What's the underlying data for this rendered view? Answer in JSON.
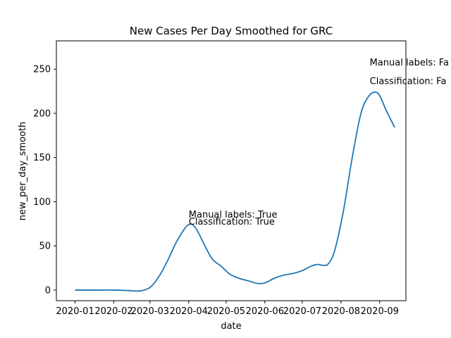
{
  "chart_data": {
    "type": "line",
    "title": "New Cases Per Day Smoothed for GRC",
    "xlabel": "date",
    "ylabel": "new_per_day_smooth",
    "x_ticks": [
      "2020-01",
      "2020-02",
      "2020-03",
      "2020-04",
      "2020-05",
      "2020-06",
      "2020-07",
      "2020-08",
      "2020-09"
    ],
    "y_ticks": [
      0,
      50,
      100,
      150,
      200,
      250
    ],
    "xlim": [
      "2019-12-17",
      "2020-09-22"
    ],
    "ylim": [
      -12,
      282
    ],
    "grid": false,
    "series": [
      {
        "color": "#1f77b4",
        "points": [
          [
            "2020-01-01",
            0
          ],
          [
            "2020-01-15",
            0
          ],
          [
            "2020-02-01",
            0
          ],
          [
            "2020-02-12",
            -0.5
          ],
          [
            "2020-02-22",
            -1
          ],
          [
            "2020-03-01",
            3
          ],
          [
            "2020-03-08",
            15
          ],
          [
            "2020-03-15",
            33
          ],
          [
            "2020-03-22",
            54
          ],
          [
            "2020-03-29",
            70
          ],
          [
            "2020-04-01",
            74
          ],
          [
            "2020-04-04",
            74
          ],
          [
            "2020-04-08",
            67
          ],
          [
            "2020-04-14",
            50
          ],
          [
            "2020-04-20",
            35
          ],
          [
            "2020-04-27",
            27
          ],
          [
            "2020-05-04",
            18
          ],
          [
            "2020-05-12",
            13
          ],
          [
            "2020-05-20",
            10
          ],
          [
            "2020-05-26",
            7.5
          ],
          [
            "2020-06-01",
            8
          ],
          [
            "2020-06-08",
            13
          ],
          [
            "2020-06-15",
            16.5
          ],
          [
            "2020-06-24",
            19
          ],
          [
            "2020-07-01",
            22
          ],
          [
            "2020-07-08",
            27
          ],
          [
            "2020-07-13",
            29
          ],
          [
            "2020-07-18",
            28
          ],
          [
            "2020-07-22",
            30
          ],
          [
            "2020-07-27",
            45
          ],
          [
            "2020-08-03",
            90
          ],
          [
            "2020-08-10",
            150
          ],
          [
            "2020-08-17",
            200
          ],
          [
            "2020-08-23",
            219
          ],
          [
            "2020-08-28",
            224
          ],
          [
            "2020-09-01",
            220
          ],
          [
            "2020-09-06",
            204
          ],
          [
            "2020-09-13",
            184
          ]
        ]
      }
    ],
    "annotations": [
      {
        "text": "Manual labels: True",
        "x": "2020-04-01",
        "y": 86
      },
      {
        "text": "Classification: True",
        "x": "2020-04-01",
        "y": 78
      },
      {
        "text": "Manual labels: Fa",
        "x": "2020-08-24",
        "y": 258
      },
      {
        "text": "Classification: Fa",
        "x": "2020-08-24",
        "y": 237
      }
    ]
  }
}
